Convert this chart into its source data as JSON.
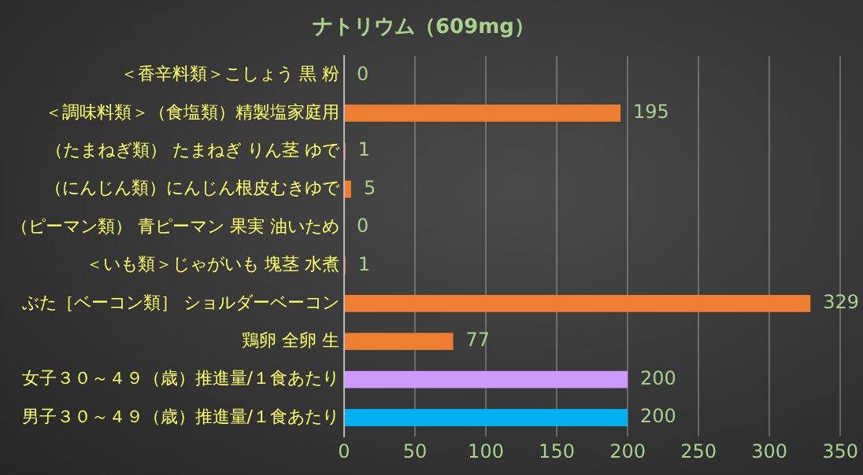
{
  "chart_data": {
    "type": "bar",
    "orientation": "horizontal",
    "title": "ナトリウム（609mg）",
    "categories": [
      "＜香辛料類＞こしょう 黒 粉",
      "＜調味料類＞（食塩類）精製塩家庭用",
      "（たまねぎ類） たまねぎ りん茎 ゆで",
      "（にんじん類）にんじん根皮むきゆで",
      "（ピーマン類） 青ピーマン 果実 油いため",
      "＜いも類＞じゃがいも 塊茎 水煮",
      "ぶた［ベーコン類］ ショルダーベーコン",
      "鶏卵 全卵 生",
      "女子３０～４９（歳）推進量/１食あたり",
      "男子３０～４９（歳）推進量/１食あたり"
    ],
    "values": [
      0,
      195,
      1,
      5,
      0,
      1,
      329,
      77,
      200,
      200
    ],
    "colors": [
      "#ed7d31",
      "#ed7d31",
      "#ed7d31",
      "#ed7d31",
      "#ed7d31",
      "#ed7d31",
      "#ed7d31",
      "#ed7d31",
      "#cc99ff",
      "#00b0f0"
    ],
    "xlim": [
      0,
      350
    ],
    "xticks": [
      0,
      50,
      100,
      150,
      200,
      250,
      300,
      350
    ],
    "grid": "x",
    "data_labels": true
  }
}
